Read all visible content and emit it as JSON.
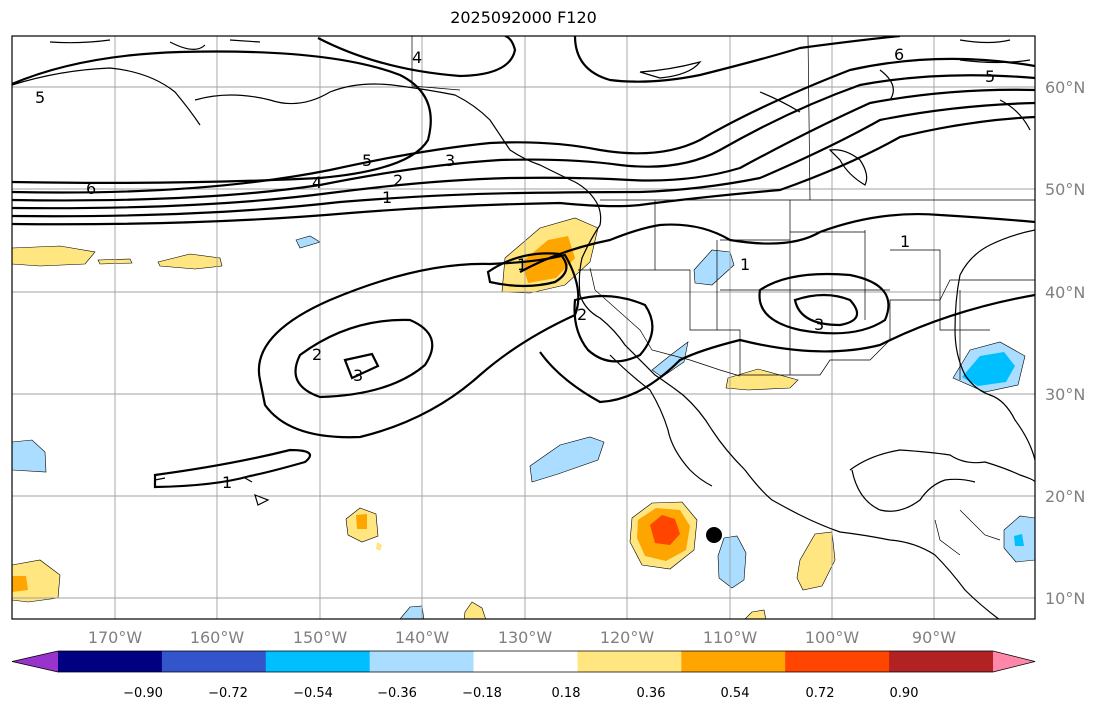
{
  "title": "2025092000 F120",
  "lat_labels": [
    "60°N",
    "50°N",
    "40°N",
    "30°N",
    "20°N",
    "10°N"
  ],
  "lon_labels": [
    "170°W",
    "160°W",
    "150°W",
    "140°W",
    "130°W",
    "120°W",
    "110°W",
    "100°W",
    "90°W"
  ],
  "colorbar": {
    "tick_labels": [
      "−0.90",
      "−0.72",
      "−0.54",
      "−0.36",
      "−0.18",
      "0.18",
      "0.36",
      "0.54",
      "0.72",
      "0.90"
    ],
    "colors": [
      "#9933cc",
      "#000080",
      "#3355cc",
      "#00bfff",
      "#aaddff",
      "#ffffff",
      "#ffe680",
      "#ffa500",
      "#ff4500",
      "#b22222",
      "#ff88aa"
    ]
  },
  "contour_labels": [
    "5",
    "6",
    "5",
    "4",
    "3",
    "2",
    "1",
    "4",
    "6",
    "5",
    "1",
    "2",
    "3",
    "1",
    "2",
    "3",
    "1",
    "1"
  ],
  "marker": "storm-center-dot"
}
